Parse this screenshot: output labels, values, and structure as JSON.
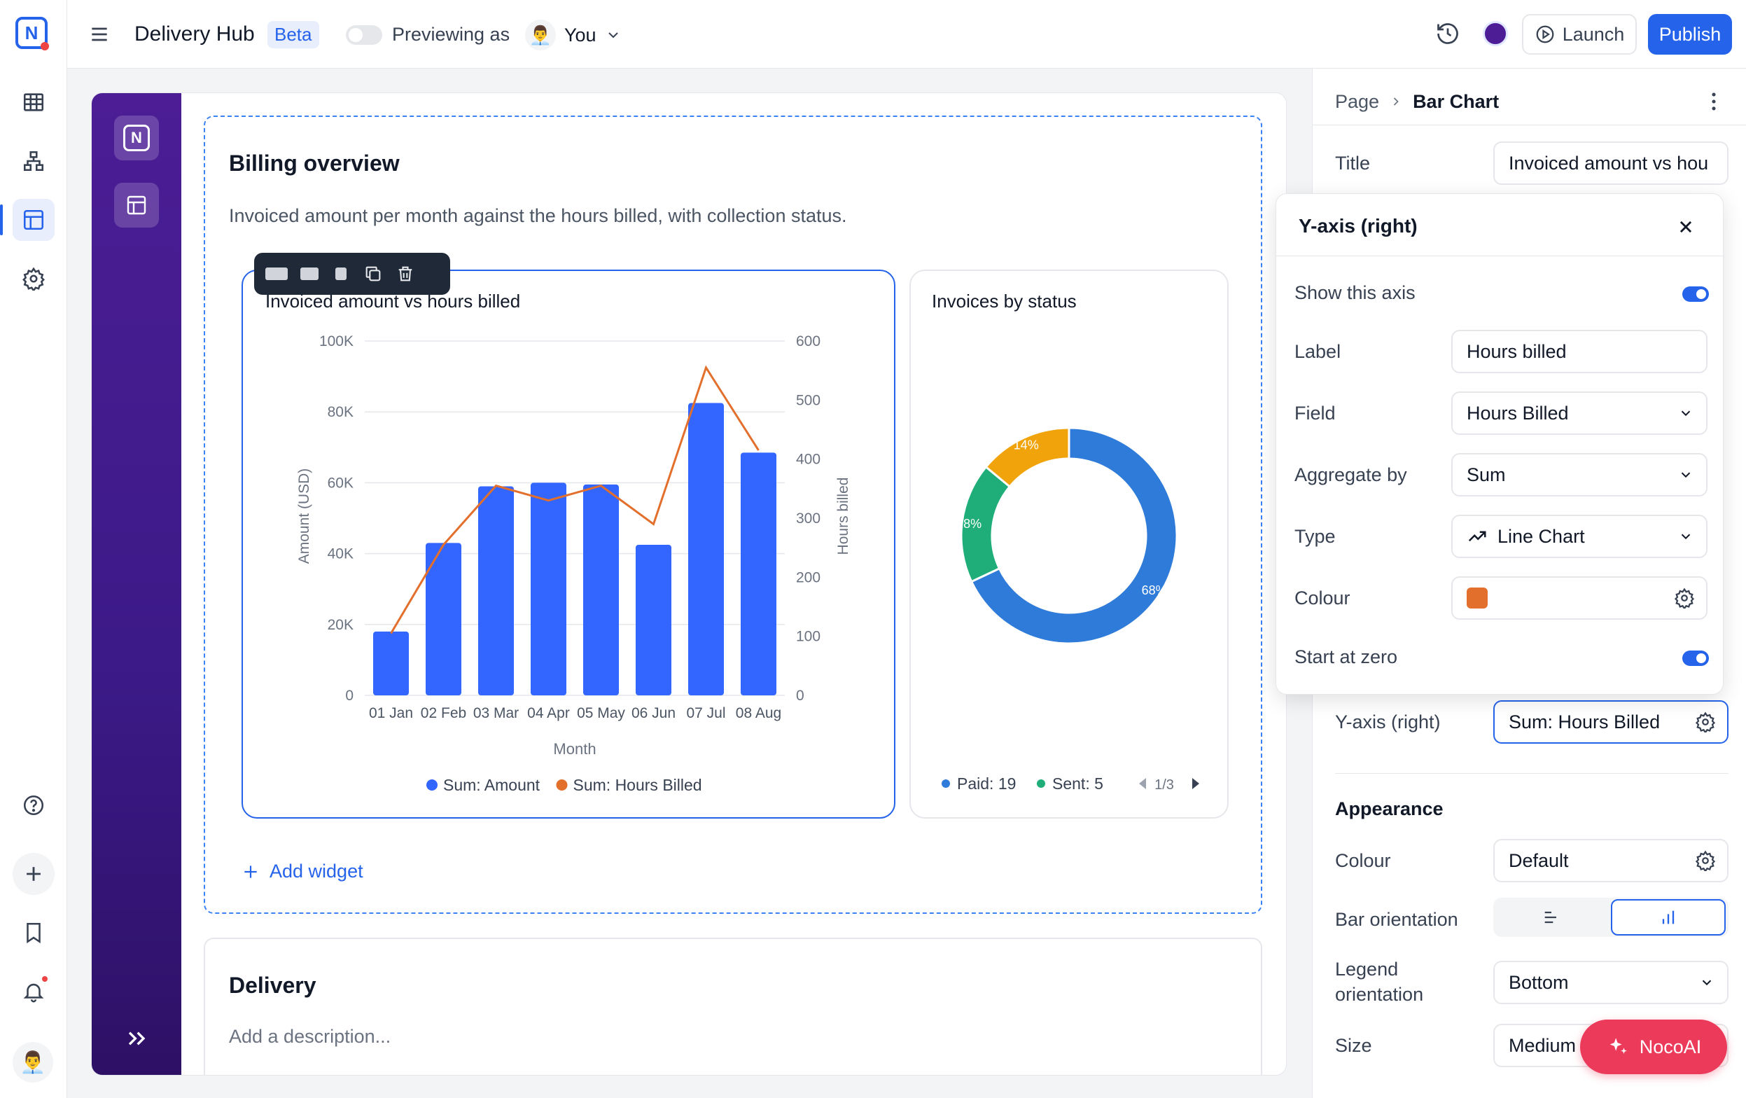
{
  "header": {
    "app_title": "Delivery Hub",
    "beta_badge": "Beta",
    "previewing_label": "Previewing as",
    "previewing_user": "You",
    "launch_label": "Launch",
    "publish_label": "Publish",
    "colors": {
      "accent": "#2563eb",
      "theme_dot": "#4c1d95"
    }
  },
  "page": {
    "section_title": "Billing overview",
    "section_description": "Invoiced amount per month against the hours billed, with collection status.",
    "add_widget_label": "Add widget",
    "section2_title": "Delivery",
    "section2_description_placeholder": "Add a description..."
  },
  "widget_toolbar": {
    "icons": [
      "size-large-icon",
      "size-medium-icon",
      "size-small-icon",
      "duplicate-icon",
      "delete-icon"
    ]
  },
  "chart_data": [
    {
      "type": "bar",
      "title": "Invoiced amount vs hours billed",
      "xlabel": "Month",
      "ylabel": "Amount (USD)",
      "y2label": "Hours billed",
      "categories": [
        "01 Jan",
        "02 Feb",
        "03 Mar",
        "04 Apr",
        "05 May",
        "06 Jun",
        "07 Jul",
        "08 Aug"
      ],
      "ylim": [
        0,
        100000
      ],
      "y_ticks": [
        "0",
        "20K",
        "40K",
        "60K",
        "80K",
        "100K"
      ],
      "y2lim": [
        0,
        600
      ],
      "y2_ticks": [
        "0",
        "100",
        "200",
        "300",
        "400",
        "500",
        "600"
      ],
      "series": [
        {
          "name": "Sum: Amount",
          "kind": "bar",
          "axis": "left",
          "color": "#3366ff",
          "values": [
            18000,
            43000,
            59000,
            60000,
            59500,
            42500,
            82500,
            68500
          ]
        },
        {
          "name": "Sum: Hours Billed",
          "kind": "line",
          "axis": "right",
          "color": "#e36f2c",
          "values": [
            105,
            255,
            355,
            330,
            355,
            290,
            555,
            415
          ]
        }
      ],
      "legend": "bottom",
      "grid": true
    },
    {
      "type": "pie",
      "title": "Invoices by status",
      "donut": true,
      "slices": [
        {
          "label": "Paid",
          "value": 68,
          "text": "68%",
          "color": "#2f7bd9"
        },
        {
          "label": "Sent",
          "value": 18,
          "text": "18%",
          "color": "#1fae7a"
        },
        {
          "label": "",
          "value": 14,
          "text": "14%",
          "color": "#f0a30a"
        }
      ],
      "legend_items": [
        {
          "label": "Paid:",
          "count": "19",
          "color": "#2f7bd9"
        },
        {
          "label": "Sent:",
          "count": "5",
          "color": "#1fae7a"
        }
      ],
      "legend_page": "1/3"
    }
  ],
  "panel": {
    "breadcrumb_root": "Page",
    "breadcrumb_current": "Bar Chart",
    "title_label": "Title",
    "title_value": "Invoiced amount vs hou",
    "yaxis_right_label": "Y-axis (right)",
    "yaxis_right_value": "Sum: Hours Billed",
    "appearance_heading": "Appearance",
    "colour_label": "Colour",
    "colour_value": "Default",
    "bar_orientation_label": "Bar orientation",
    "legend_orientation_label": "Legend orientation",
    "legend_orientation_value": "Bottom",
    "size_label": "Size",
    "size_value": "Medium",
    "nocoai_label": "NocoAI"
  },
  "popup": {
    "title": "Y-axis (right)",
    "show_axis_label": "Show this axis",
    "show_axis_on": true,
    "label_label": "Label",
    "label_value": "Hours billed",
    "field_label": "Field",
    "field_value": "Hours Billed",
    "aggregate_label": "Aggregate by",
    "aggregate_value": "Sum",
    "type_label": "Type",
    "type_value": "Line Chart",
    "colour_label": "Colour",
    "colour_swatch": "#e36f2c",
    "start_zero_label": "Start at zero",
    "start_zero_on": true
  }
}
